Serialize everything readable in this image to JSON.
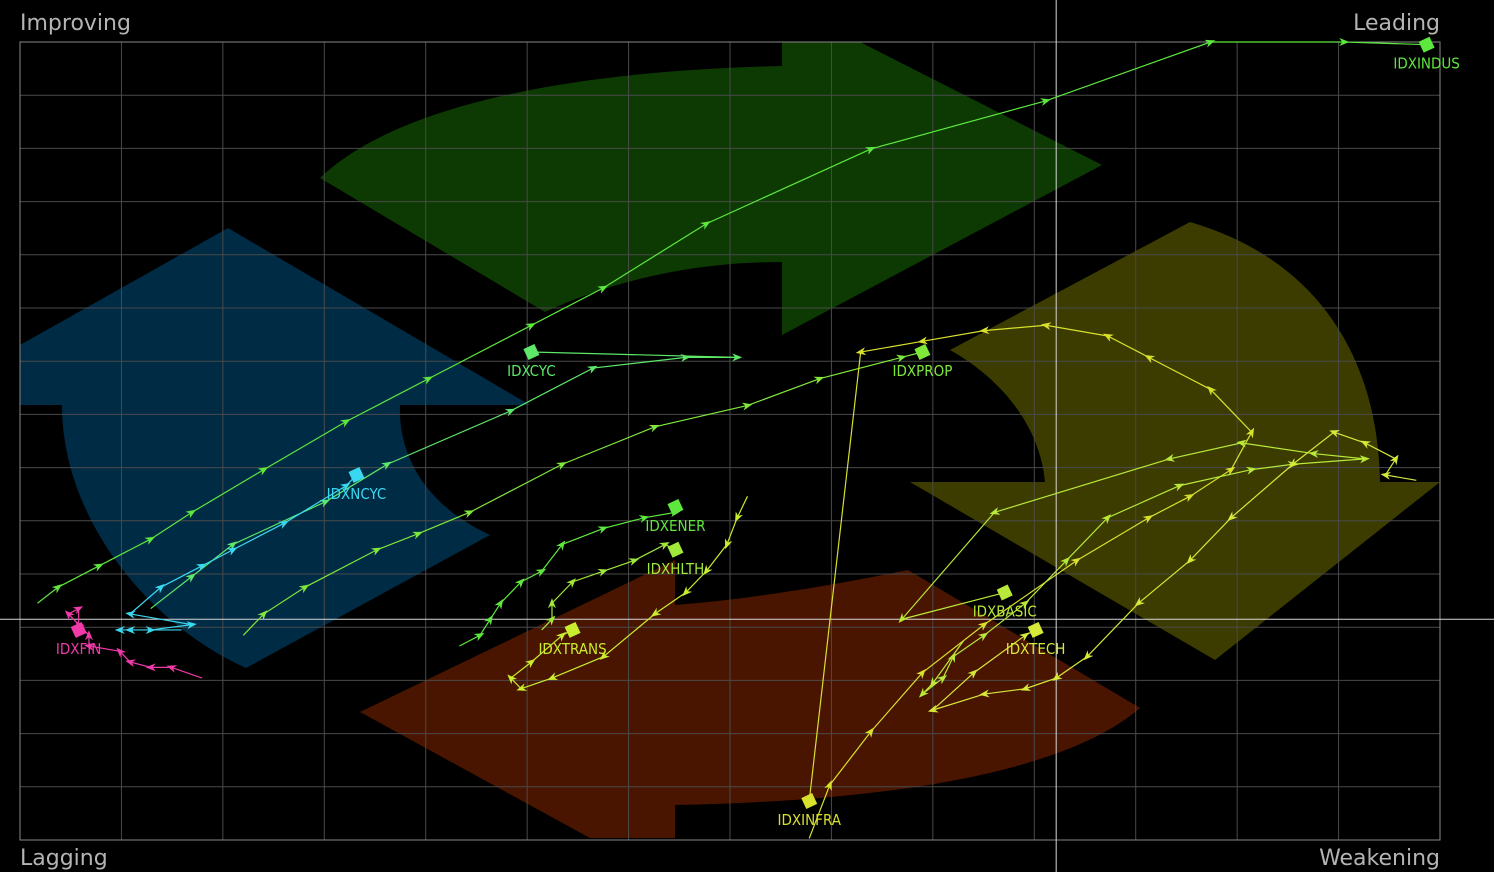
{
  "quadrants": {
    "improving": "Improving",
    "leading": "Leading",
    "lagging": "Lagging",
    "weakening": "Weakening"
  },
  "colors": {
    "background": "#000000",
    "grid": "#4a4a4a",
    "axis": "#d8d8d8",
    "quadrant_text": "#b4b4b4",
    "arrow_improving": "#002b45",
    "arrow_leading": "#0c3a02",
    "arrow_weakening": "#3c3c00",
    "arrow_lagging": "#4a1500"
  },
  "chart_data": {
    "type": "scatter",
    "title": "",
    "xlabel": "",
    "ylabel": "",
    "xlim": [
      89.93,
      103.73
    ],
    "ylim": [
      95.87,
      110.8
    ],
    "center": [
      100,
      100
    ],
    "grid": true,
    "series": [
      {
        "name": "IDXINDUS",
        "color": "#5de83e",
        "label": "IDXINDUS",
        "label_pos": "below",
        "points": [
          [
            90.1,
            100.3
          ],
          [
            90.3,
            100.6
          ],
          [
            90.7,
            101
          ],
          [
            91.2,
            101.5
          ],
          [
            91.6,
            102
          ],
          [
            92.3,
            102.8
          ],
          [
            93.1,
            103.7
          ],
          [
            93.9,
            104.5
          ],
          [
            94.9,
            105.5
          ],
          [
            95.6,
            106.2
          ],
          [
            96.6,
            107.4
          ],
          [
            98.2,
            108.8
          ],
          [
            99.9,
            109.7
          ],
          [
            101.5,
            110.8
          ],
          [
            102.8,
            110.8
          ],
          [
            103.6,
            110.75
          ]
        ]
      },
      {
        "name": "IDXCYC",
        "color": "#5de86a",
        "label": "IDXCYC",
        "label_pos": "below",
        "points": [
          [
            91.2,
            100.2
          ],
          [
            91.6,
            100.8
          ],
          [
            92,
            101.4
          ],
          [
            92.9,
            102.2
          ],
          [
            93.5,
            102.9
          ],
          [
            94.7,
            103.9
          ],
          [
            95.5,
            104.7
          ],
          [
            96.4,
            104.9
          ],
          [
            96.9,
            104.9
          ],
          [
            94.9,
            105.0
          ]
        ]
      },
      {
        "name": "IDXPROP",
        "color": "#7fe83a",
        "label": "IDXPROP",
        "label_pos": "below",
        "points": [
          [
            92.1,
            99.7
          ],
          [
            92.3,
            100.1
          ],
          [
            92.7,
            100.6
          ],
          [
            93.4,
            101.3
          ],
          [
            93.8,
            101.6
          ],
          [
            94.3,
            102.0
          ],
          [
            95.2,
            102.9
          ],
          [
            96.1,
            103.6
          ],
          [
            97.0,
            104.0
          ],
          [
            97.7,
            104.5
          ],
          [
            98.5,
            104.9
          ],
          [
            98.7,
            105.0
          ]
        ]
      },
      {
        "name": "IDXNCYC",
        "color": "#3ad8f0",
        "label": "IDXNCYC",
        "label_pos": "below",
        "points": [
          [
            91.5,
            99.8
          ],
          [
            91.0,
            99.8
          ],
          [
            90.9,
            99.8
          ],
          [
            91.2,
            99.8
          ],
          [
            91.6,
            99.9
          ],
          [
            91.0,
            100.1
          ],
          [
            91.3,
            100.6
          ],
          [
            91.7,
            101
          ],
          [
            92.0,
            101.3
          ],
          [
            92.5,
            101.8
          ],
          [
            93.1,
            102.5
          ],
          [
            93.2,
            102.7
          ]
        ]
      },
      {
        "name": "IDXFIN",
        "color": "#f03aa8",
        "label": "IDXFIN",
        "label_pos": "below",
        "points": [
          [
            91.7,
            98.9
          ],
          [
            91.4,
            99.1
          ],
          [
            91.2,
            99.1
          ],
          [
            91.0,
            99.2
          ],
          [
            90.9,
            99.4
          ],
          [
            90.6,
            99.5
          ],
          [
            90.6,
            99.7
          ],
          [
            90.5,
            99.9
          ],
          [
            90.4,
            100.1
          ],
          [
            90.5,
            100.2
          ],
          [
            90.5,
            99.8
          ]
        ]
      },
      {
        "name": "IDXENER",
        "color": "#5ee83e",
        "label": "IDXENER",
        "label_pos": "below",
        "points": [
          [
            94.2,
            99.5
          ],
          [
            94.4,
            99.7
          ],
          [
            94.5,
            100.0
          ],
          [
            94.6,
            100.3
          ],
          [
            94.8,
            100.7
          ],
          [
            95.0,
            100.9
          ],
          [
            95.2,
            101.4
          ],
          [
            95.6,
            101.7
          ],
          [
            96.0,
            101.9
          ],
          [
            96.3,
            102.0
          ],
          [
            96.3,
            102.1
          ]
        ]
      },
      {
        "name": "IDXHLTH",
        "color": "#a0e83a",
        "label": "IDXHLTH",
        "label_pos": "below",
        "points": [
          [
            95.0,
            99.8
          ],
          [
            95.1,
            100.0
          ],
          [
            95.1,
            100.3
          ],
          [
            95.3,
            100.7
          ],
          [
            95.6,
            100.9
          ],
          [
            95.9,
            101.1
          ],
          [
            96.2,
            101.4
          ],
          [
            96.3,
            101.3
          ]
        ]
      },
      {
        "name": "IDXTRANS",
        "color": "#c8ec2e",
        "label": "IDXTRANS",
        "label_pos": "below",
        "points": [
          [
            97.0,
            102.3
          ],
          [
            96.9,
            101.9
          ],
          [
            96.8,
            101.4
          ],
          [
            96.6,
            100.9
          ],
          [
            96.4,
            100.5
          ],
          [
            96.1,
            100.1
          ],
          [
            95.6,
            99.3
          ],
          [
            95.1,
            98.9
          ],
          [
            94.8,
            98.7
          ],
          [
            94.7,
            98.9
          ],
          [
            94.9,
            99.2
          ],
          [
            95.2,
            99.7
          ],
          [
            95.3,
            99.8
          ]
        ]
      },
      {
        "name": "IDXINFRA",
        "color": "#d8e02e",
        "label": "IDXINFRA",
        "label_pos": "below",
        "points": [
          [
            97.6,
            95.9
          ],
          [
            97.8,
            96.9
          ],
          [
            98.2,
            97.9
          ],
          [
            98.7,
            99.0
          ],
          [
            99.3,
            99.9
          ],
          [
            100.2,
            101.1
          ],
          [
            100.9,
            101.9
          ],
          [
            101.3,
            102.3
          ],
          [
            101.7,
            102.8
          ],
          [
            101.9,
            103.5
          ],
          [
            101.5,
            104.3
          ],
          [
            100.9,
            104.9
          ],
          [
            100.5,
            105.3
          ],
          [
            99.9,
            105.5
          ],
          [
            99.3,
            105.4
          ],
          [
            98.7,
            105.2
          ],
          [
            98.1,
            105.0
          ],
          [
            97.6,
            96.6
          ]
        ]
      },
      {
        "name": "IDXBASIC",
        "color": "#b8e83a",
        "label": "IDXBASIC",
        "label_pos": "below",
        "points": [
          [
            99.1,
            99.6
          ],
          [
            98.8,
            98.8
          ],
          [
            98.7,
            98.6
          ],
          [
            98.9,
            98.9
          ],
          [
            99.0,
            99.3
          ],
          [
            99.3,
            99.7
          ],
          [
            99.7,
            100.3
          ],
          [
            100.1,
            101.1
          ],
          [
            100.5,
            101.9
          ],
          [
            101.2,
            102.5
          ],
          [
            101.9,
            102.8
          ],
          [
            102.3,
            102.9
          ],
          [
            103.0,
            103.0
          ],
          [
            102.5,
            103.1
          ],
          [
            101.8,
            103.3
          ],
          [
            101.1,
            103.0
          ],
          [
            99.4,
            102.0
          ],
          [
            98.5,
            100.0
          ],
          [
            99.5,
            100.5
          ]
        ]
      },
      {
        "name": "IDXTECH",
        "color": "#d6e83a",
        "label": "IDXTECH",
        "label_pos": "below",
        "points": [
          [
            103.5,
            102.6
          ],
          [
            103.2,
            102.7
          ],
          [
            103.3,
            103.0
          ],
          [
            103.0,
            103.3
          ],
          [
            102.7,
            103.5
          ],
          [
            102.3,
            102.9
          ],
          [
            101.7,
            101.9
          ],
          [
            101.3,
            101.1
          ],
          [
            100.8,
            100.3
          ],
          [
            100.3,
            99.3
          ],
          [
            100.0,
            98.9
          ],
          [
            99.7,
            98.7
          ],
          [
            99.3,
            98.6
          ],
          [
            98.8,
            98.3
          ],
          [
            99.2,
            99.0
          ],
          [
            99.7,
            99.7
          ],
          [
            99.8,
            99.8
          ]
        ]
      }
    ]
  }
}
